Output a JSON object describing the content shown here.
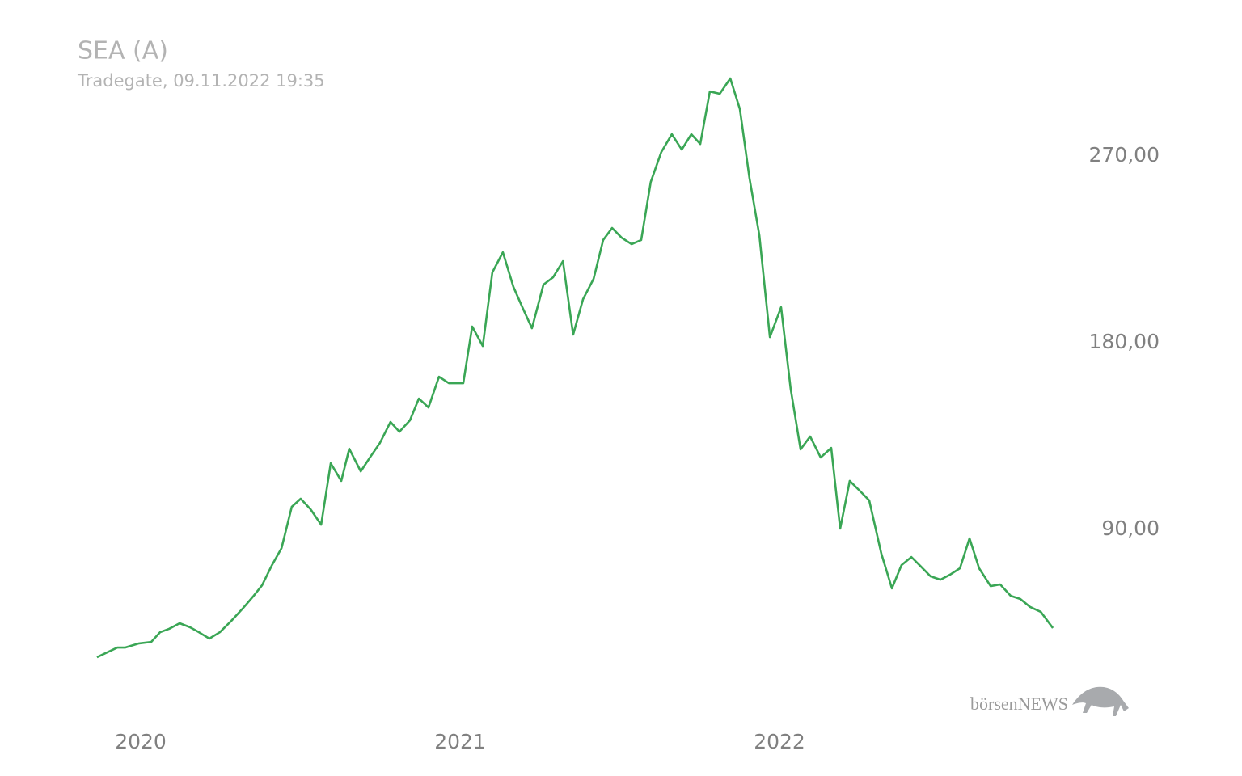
{
  "chart_data": {
    "type": "line",
    "title": "SEA (A)",
    "subtitle": "Tradegate, 09.11.2022 19:35",
    "watermark": "börsenNEWS",
    "x": [
      2019.863,
      2019.927,
      2019.952,
      2019.995,
      2020.033,
      2020.061,
      2020.089,
      2020.122,
      2020.154,
      2020.182,
      2020.215,
      2020.248,
      2020.284,
      2020.319,
      2020.352,
      2020.38,
      2020.41,
      2020.441,
      2020.473,
      2020.501,
      2020.532,
      2020.565,
      2020.595,
      2020.628,
      2020.653,
      2020.689,
      2020.719,
      2020.749,
      2020.782,
      2020.81,
      2020.843,
      2020.871,
      2020.901,
      2020.934,
      2020.965,
      2021.01,
      2021.038,
      2021.071,
      2021.101,
      2021.134,
      2021.167,
      2021.195,
      2021.225,
      2021.261,
      2021.291,
      2021.322,
      2021.354,
      2021.385,
      2021.418,
      2021.448,
      2021.476,
      2021.506,
      2021.537,
      2021.567,
      2021.597,
      2021.63,
      2021.663,
      2021.694,
      2021.724,
      2021.752,
      2021.782,
      2021.813,
      2021.846,
      2021.876,
      2021.906,
      2021.937,
      2021.97,
      2022.005,
      2022.035,
      2022.066,
      2022.096,
      2022.129,
      2022.162,
      2022.19,
      2022.22,
      2022.251,
      2022.281,
      2022.319,
      2022.352,
      2022.382,
      2022.413,
      2022.443,
      2022.473,
      2022.504,
      2022.534,
      2022.565,
      2022.595,
      2022.625,
      2022.661,
      2022.691,
      2022.724,
      2022.754,
      2022.785,
      2022.818,
      2022.856
    ],
    "series": [
      {
        "name": "SEA (A)",
        "color": "#3aa655",
        "values": [
          28.4,
          33.1,
          33.1,
          35.1,
          35.8,
          40.5,
          42.1,
          44.8,
          42.9,
          40.5,
          37.4,
          40.5,
          46.0,
          51.8,
          57.7,
          63.1,
          72.5,
          81.0,
          100.9,
          104.8,
          99.7,
          92.3,
          121.9,
          113.4,
          128.9,
          118.0,
          125.0,
          131.7,
          141.8,
          137.1,
          142.6,
          153.1,
          148.8,
          163.6,
          160.5,
          160.5,
          187.8,
          178.4,
          213.9,
          223.6,
          206.9,
          197.1,
          187.0,
          208.0,
          211.5,
          219.3,
          183.9,
          201.0,
          210.8,
          229.5,
          235.3,
          230.6,
          227.5,
          229.5,
          257.5,
          271.9,
          280.5,
          273.1,
          280.5,
          275.8,
          301.1,
          300.0,
          307.4,
          292.6,
          259.4,
          231.8,
          182.7,
          197.1,
          157.8,
          128.6,
          134.8,
          124.7,
          129.3,
          90.4,
          113.4,
          108.7,
          104.0,
          78.3,
          61.6,
          72.8,
          76.7,
          72.1,
          67.4,
          65.8,
          68.2,
          71.3,
          85.7,
          71.3,
          62.7,
          63.5,
          58.0,
          56.5,
          52.6,
          50.3,
          42.5
        ]
      }
    ],
    "xlim": [
      2019.8,
      2023.0
    ],
    "xticks": [
      2020,
      2021,
      2022
    ],
    "ylim": [
      0,
      330
    ],
    "yticks": [
      {
        "value": 90,
        "label": "90,00"
      },
      {
        "value": 180,
        "label": "180,00"
      },
      {
        "value": 270,
        "label": "270,00"
      }
    ],
    "grid": false
  }
}
